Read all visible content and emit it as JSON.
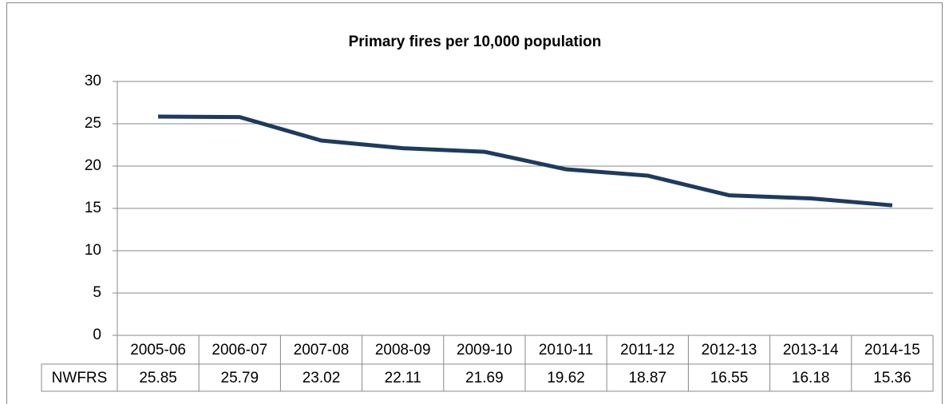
{
  "chart_data": {
    "type": "line",
    "title": "Primary fires per 10,000 population",
    "categories": [
      "2005-06",
      "2006-07",
      "2007-08",
      "2008-09",
      "2009-10",
      "2010-11",
      "2011-12",
      "2012-13",
      "2013-14",
      "2014-15"
    ],
    "series": [
      {
        "name": "NWFRS",
        "color": "#1f3a5f",
        "values": [
          25.85,
          25.79,
          23.02,
          22.11,
          21.69,
          19.62,
          18.87,
          16.55,
          16.18,
          15.36
        ]
      }
    ],
    "ylim": [
      0,
      30
    ],
    "yticks": [
      0,
      5,
      10,
      15,
      20,
      25,
      30
    ],
    "grid": true,
    "data_table": true
  }
}
